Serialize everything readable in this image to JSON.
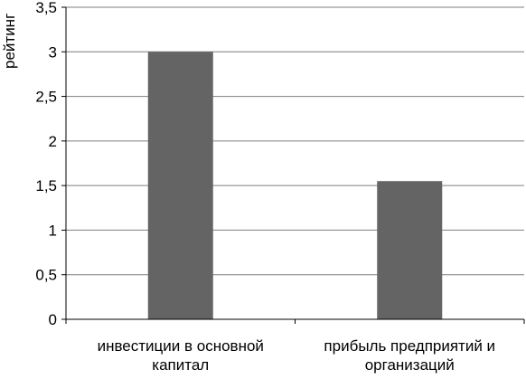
{
  "chart_data": {
    "type": "bar",
    "categories": [
      "инвестиции в основной капитал",
      "прибыль предприятий и организаций"
    ],
    "category_lines": [
      [
        "инвестиции в основной",
        "капитал"
      ],
      [
        "прибыль предприятий и",
        "организаций"
      ]
    ],
    "values": [
      3.0,
      1.55
    ],
    "title": "",
    "xlabel": "",
    "ylabel": "рейтинг",
    "ylim": [
      0,
      3.5
    ],
    "yticks": [
      "0",
      "0,5",
      "1",
      "1,5",
      "2",
      "2,5",
      "3",
      "3,5"
    ],
    "grid": true,
    "legend": "none",
    "bar_color": "#646464",
    "grid_color": "#7f7f7f"
  }
}
